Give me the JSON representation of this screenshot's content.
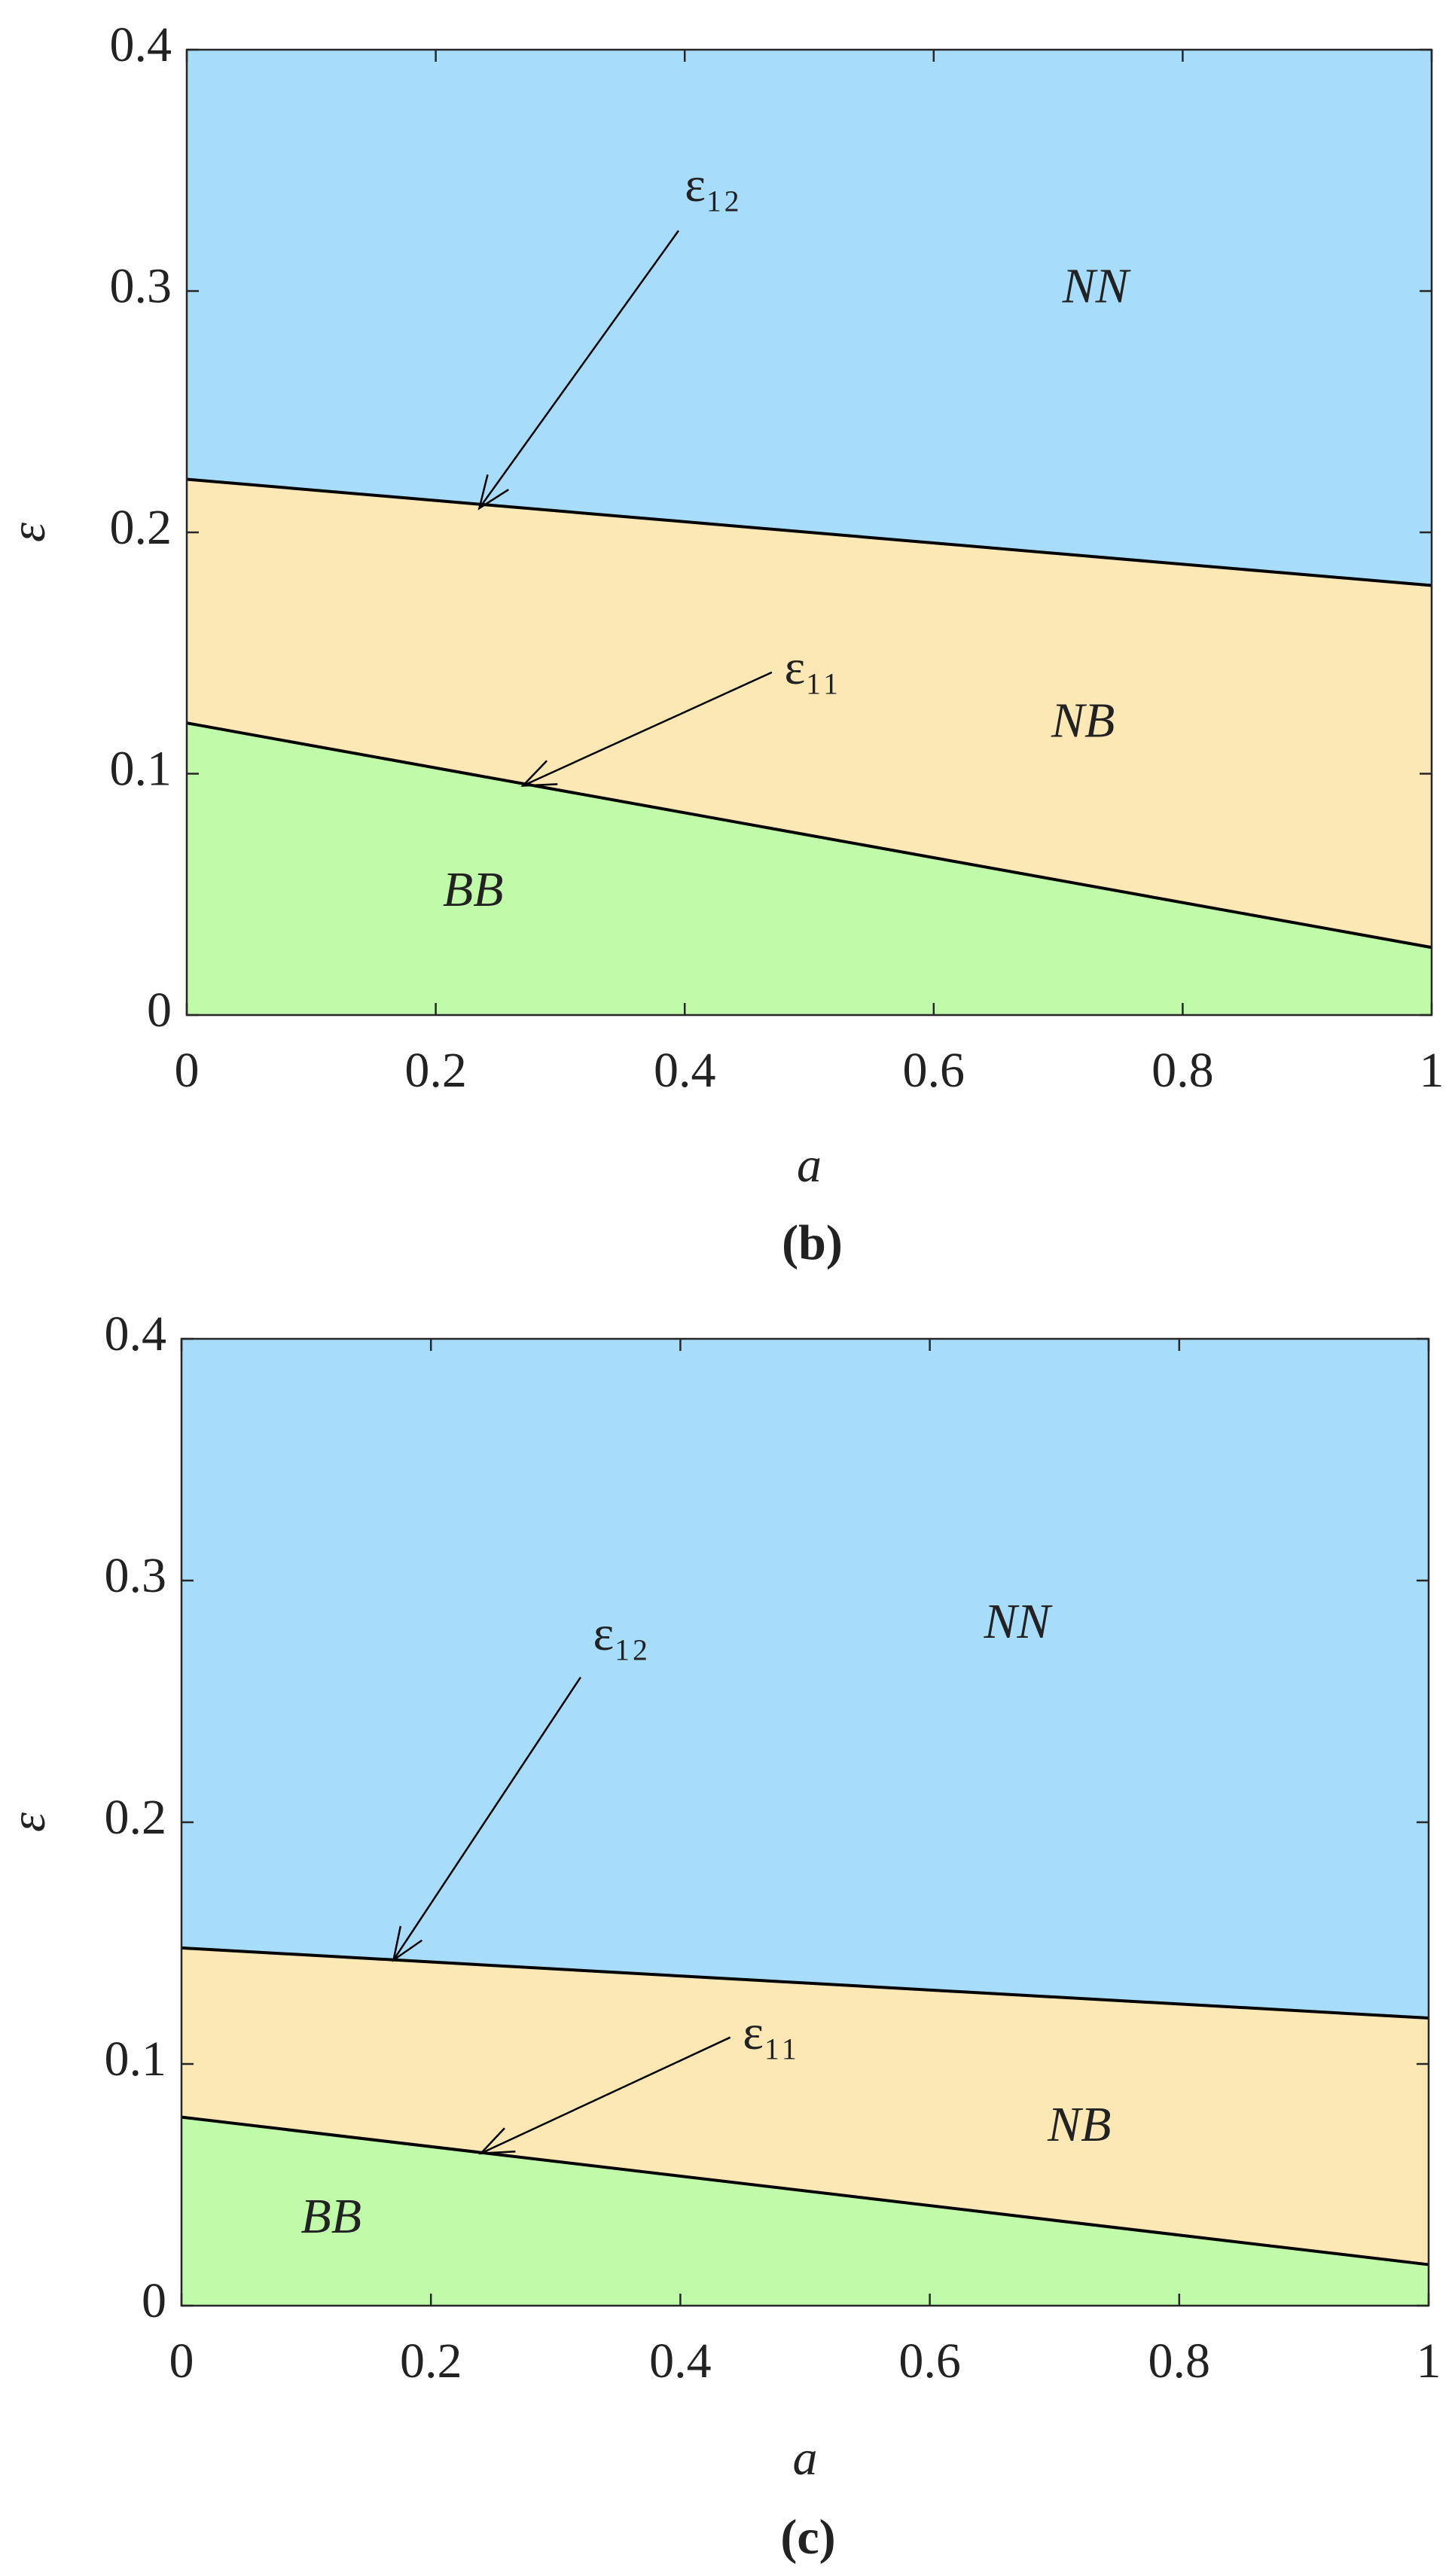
{
  "chart_data": [
    {
      "type": "region",
      "caption": "(b)",
      "xlabel": "a",
      "ylabel": "ε",
      "xlim": [
        0,
        1
      ],
      "ylim": [
        0,
        0.4
      ],
      "xticks": [
        0,
        0.2,
        0.4,
        0.6,
        0.8,
        1
      ],
      "yticks": [
        0,
        0.1,
        0.2,
        0.3,
        0.4
      ],
      "x": [
        0,
        1
      ],
      "series": [
        {
          "name": "ε₁₁",
          "color": "#000000",
          "values": [
            0.121,
            0.028
          ]
        },
        {
          "name": "ε₁₂",
          "color": "#000000",
          "values": [
            0.222,
            0.178
          ]
        }
      ],
      "regions": [
        {
          "label": "BB",
          "color": "#bffba8"
        },
        {
          "label": "NB",
          "color": "#fbe8b5"
        },
        {
          "label": "NN",
          "color": "#a8dcfb"
        }
      ]
    },
    {
      "type": "region",
      "caption": "(c)",
      "xlabel": "a",
      "ylabel": "ε",
      "xlim": [
        0,
        1
      ],
      "ylim": [
        0,
        0.4
      ],
      "xticks": [
        0,
        0.2,
        0.4,
        0.6,
        0.8,
        1
      ],
      "yticks": [
        0,
        0.1,
        0.2,
        0.3,
        0.4
      ],
      "x": [
        0,
        1
      ],
      "series": [
        {
          "name": "ε₁₁",
          "color": "#000000",
          "values": [
            0.078,
            0.017
          ]
        },
        {
          "name": "ε₁₂",
          "color": "#000000",
          "values": [
            0.148,
            0.119
          ]
        }
      ],
      "regions": [
        {
          "label": "BB",
          "color": "#bffba8"
        },
        {
          "label": "NB",
          "color": "#fbe8b5"
        },
        {
          "label": "NN",
          "color": "#a8dcfb"
        }
      ]
    }
  ]
}
